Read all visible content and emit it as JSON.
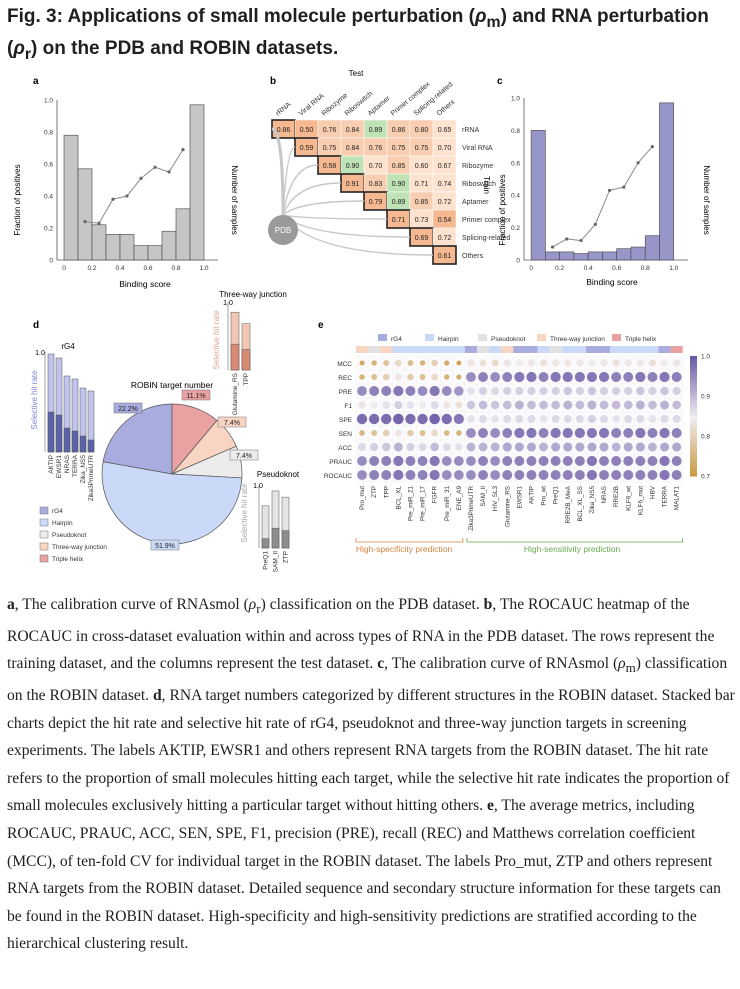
{
  "title": {
    "prefix": "Fig. 3: Applications of small molecule perturbation (",
    "rho_m": "ρ",
    "sub_m": "m",
    "mid": ") and RNA perturbation (",
    "rho_r": "ρ",
    "sub_r": "r",
    "suffix": ") on the PDB and ROBIN datasets."
  },
  "panel_a": {
    "label": "a",
    "ylabel": "Fraction of positives",
    "ylabel_right": "Number of samples",
    "xlabel": "Binding score",
    "xticks": [
      "0",
      "0.2",
      "0.4",
      "0.6",
      "0.8",
      "1.0"
    ],
    "yticks": [
      "0",
      "0.2",
      "0.4",
      "0.6",
      "0.8",
      "1.0"
    ],
    "colors": {
      "bars": "#c6c6c6",
      "line": "#8a8a8a"
    }
  },
  "panel_b": {
    "label": "b",
    "test_label": "Test",
    "train_label": "Train",
    "source_node": "PDB",
    "columns": [
      "rRNA",
      "Viral RNA",
      "Ribozyme",
      "Riboswitch",
      "Aptamer",
      "Primer complex",
      "Splicing-related",
      "Others"
    ],
    "rows": [
      "rRNA",
      "Viral RNA",
      "Ribozyme",
      "Riboswitch",
      "Aptamer",
      "Primer complex",
      "Splicing-related",
      "Others"
    ],
    "cells": [
      [
        "0.86",
        "0.50",
        "0.76",
        "0.84",
        "0.89",
        "0.86",
        "0.80",
        "0.65"
      ],
      [
        "",
        "0.59",
        "0.75",
        "0.84",
        "0.76",
        "0.75",
        "0.75",
        "0.70"
      ],
      [
        "",
        "",
        "0.58",
        "0.90",
        "0.70",
        "0.85",
        "0.60",
        "0.67"
      ],
      [
        "",
        "",
        "",
        "0.91",
        "0.83",
        "0.90",
        "0.71",
        "0.74"
      ],
      [
        "",
        "",
        "",
        "",
        "0.79",
        "0.89",
        "0.85",
        "0.72"
      ],
      [
        "",
        "",
        "",
        "",
        "",
        "0.71",
        "0.73",
        "0.54"
      ],
      [
        "",
        "",
        "",
        "",
        "",
        "",
        "0.69",
        "0.72"
      ],
      [
        "",
        "",
        "",
        "",
        "",
        "",
        "",
        "0.61"
      ]
    ],
    "colors": {
      "low": "#fde2cf",
      "mid": "#f5b890",
      "high": "#bfe3b6",
      "border": "#222222"
    }
  },
  "panel_c": {
    "label": "c",
    "ylabel": "Fraction of positives",
    "ylabel_right": "Number of samples",
    "xlabel": "Binding score",
    "xticks": [
      "0",
      "0.2",
      "0.4",
      "0.6",
      "0.8",
      "1.0"
    ],
    "yticks": [
      "0",
      "0.2",
      "0.4",
      "0.6",
      "0.8",
      "1.0"
    ],
    "colors": {
      "bars": "#9896c8",
      "line": "#8a8a8a"
    }
  },
  "panel_d": {
    "label": "d",
    "bars_rg4": {
      "title": "rG4",
      "ymax": "1.0",
      "ylabel": "Selective hit rate",
      "labels": [
        "AKTIP",
        "EWSR1",
        "NRAS",
        "TERRA",
        "Zika_NS5",
        "Zika3PrimeUTR"
      ]
    },
    "bars_tw": {
      "title": "Three-way junction",
      "ymax": "1.0",
      "ylabel": "Selective hit rate",
      "labels": [
        "Glutamine_RS",
        "TPP"
      ]
    },
    "bars_pk": {
      "title": "Pseudoknot",
      "ymax": "1.0",
      "ylabel": "Selective hit rate",
      "labels": [
        "PreQ1",
        "SAM_II",
        "ZTP"
      ]
    },
    "pie_title": "ROBIN target number",
    "slices": [
      {
        "name": "rG4",
        "pct": "22.2%",
        "value": 22.2,
        "color": "#a9acdf"
      },
      {
        "name": "Triple helix",
        "pct": "11.1%",
        "value": 11.1,
        "color": "#e9a1a1"
      },
      {
        "name": "Three-way junction",
        "pct": "7.4%",
        "value": 7.4,
        "color": "#f8d4c3"
      },
      {
        "name": "Pseudoknot",
        "pct": "7.4%",
        "value": 7.4,
        "color": "#ececec"
      },
      {
        "name": "Hairpin",
        "pct": "51.9%",
        "value": 51.9,
        "color": "#c9d9f7"
      }
    ],
    "legend": [
      "rG4",
      "Hairpin",
      "Pseudoknot",
      "Three-way junction",
      "Triple helix"
    ]
  },
  "panel_e": {
    "label": "e",
    "legend": [
      {
        "name": "rG4",
        "color": "#a9acdf"
      },
      {
        "name": "Hairpin",
        "color": "#c9d9f7"
      },
      {
        "name": "Pseudoknot",
        "color": "#e2e2e2"
      },
      {
        "name": "Three-way junction",
        "color": "#f8d4c3"
      },
      {
        "name": "Triple helix",
        "color": "#e9a1a1"
      }
    ],
    "metrics": [
      "MCC",
      "REC",
      "PRE",
      "F1",
      "SPE",
      "SEN",
      "ACC",
      "PRAUC",
      "ROCAUC"
    ],
    "targets": [
      "Pro_mut",
      "ZTP",
      "TPP",
      "BCL_XL",
      "Pre_miR_21",
      "Pre_miR_17",
      "FGFR",
      "Pre_miR_31",
      "ENE_A9",
      "Zika3PrimeUTR",
      "SAM_II",
      "HIV_SL3",
      "Glutamine_RS",
      "EWSR1",
      "AKTIP",
      "Pro_wt",
      "PreQ1",
      "RRE2B_MeA",
      "BCL_XL_SS",
      "Zika_NS5",
      "NRAS",
      "RRE2B",
      "KLF6_wt",
      "KLF6_mut",
      "HBV",
      "TERRA",
      "MALAT1"
    ],
    "colorbar_ticks": [
      "1.0",
      "0.9",
      "0.8",
      "0.7"
    ],
    "group_left": "High-specificity prediction",
    "group_right": "High-sensitivity prediction",
    "colors": {
      "high": "#6a5aa6",
      "low": "#c9973e",
      "left_group": "#d4843e",
      "right_group": "#6aa84f"
    }
  },
  "caption": {
    "a_label": "a",
    "a_text_1": ", The calibration curve of RNAsmol (",
    "a_rho": "ρ",
    "a_sub": "r",
    "a_text_2": ") classification on the PDB dataset. ",
    "b_label": "b",
    "b_text": ", The ROCAUC heatmap of the ROCAUC in cross-dataset evaluation within and across types of RNA in the PDB dataset. The rows represent the training dataset, and the columns represent the test dataset. ",
    "c_label": "c",
    "c_text_1": ", The calibration curve of RNAsmol (",
    "c_rho": "ρ",
    "c_sub": "m",
    "c_text_2": ") classification on the ROBIN dataset. ",
    "d_label": "d",
    "d_text": ", RNA target numbers categorized by different structures in the ROBIN dataset. Stacked bar charts depict the hit rate and selective hit rate of rG4, pseudoknot and three-way junction targets in screening experiments. The labels AKTIP, EWSR1 and others represent RNA targets from the ROBIN dataset. The hit rate refers to the proportion of small molecules hitting each target, while the selective hit rate indicates the proportion of small molecules exclusively hitting a particular target without hitting others. ",
    "e_label": "e",
    "e_text": ", The average metrics, including ROCAUC, PRAUC, ACC, SEN, SPE, F1, precision (PRE), recall (REC) and Matthews correlation coefficient (MCC), of ten-fold CV for individual target in the ROBIN dataset. The labels Pro_mut, ZTP and others represent RNA targets from the ROBIN dataset. Detailed sequence and secondary structure information for these targets can be found in the ROBIN dataset. High-specificity and high-sensitivity predictions are stratified according to the hierarchical clustering result."
  },
  "chart_data": [
    {
      "type": "bar",
      "panel": "a",
      "xlabel": "Binding score",
      "ylabel": "Fraction of positives",
      "categories": [
        "0.05",
        "0.15",
        "0.25",
        "0.35",
        "0.45",
        "0.55",
        "0.65",
        "0.75",
        "0.85",
        "0.95"
      ],
      "series": [
        {
          "values": [
            0.78,
            0.57,
            0.22,
            0.16,
            0.16,
            0.09,
            0.09,
            0.18,
            0.32,
            0.97
          ]
        }
      ],
      "line": {
        "x": [
          0.15,
          0.25,
          0.35,
          0.45,
          0.55,
          0.65,
          0.75,
          0.85
        ],
        "y": [
          0.24,
          0.23,
          0.38,
          0.4,
          0.51,
          0.58,
          0.55,
          0.69
        ]
      },
      "xlim": [
        -0.05,
        1.1
      ],
      "ylim": [
        0,
        1.0
      ]
    },
    {
      "type": "bar",
      "panel": "c",
      "xlabel": "Binding score",
      "ylabel": "Fraction of positives",
      "categories": [
        "0.05",
        "0.15",
        "0.25",
        "0.35",
        "0.45",
        "0.55",
        "0.65",
        "0.75",
        "0.85",
        "0.95"
      ],
      "series": [
        {
          "values": [
            0.8,
            0.05,
            0.05,
            0.04,
            0.05,
            0.05,
            0.07,
            0.08,
            0.15,
            0.97
          ]
        }
      ],
      "line": {
        "x": [
          0.15,
          0.25,
          0.35,
          0.45,
          0.55,
          0.65,
          0.75,
          0.85
        ],
        "y": [
          0.08,
          0.13,
          0.12,
          0.22,
          0.43,
          0.45,
          0.6,
          0.7
        ]
      },
      "xlim": [
        -0.05,
        1.1
      ],
      "ylim": [
        0,
        1.0
      ]
    },
    {
      "type": "heatmap",
      "panel": "b",
      "values_from": "panel_b.cells"
    },
    {
      "type": "pie",
      "panel": "d",
      "title": "ROBIN target number",
      "labels": [
        "rG4",
        "Triple helix",
        "Three-way junction",
        "Pseudoknot",
        "Hairpin"
      ],
      "values": [
        22.2,
        11.1,
        7.4,
        7.4,
        51.9
      ]
    },
    {
      "type": "bar",
      "panel": "d-rG4",
      "categories": [
        "AKTIP",
        "EWSR1",
        "NRAS",
        "TERRA",
        "Zika_NS5",
        "Zika3PrimeUTR"
      ],
      "series": [
        {
          "values": [
            0.98,
            0.94,
            0.76,
            0.73,
            0.64,
            0.61
          ]
        },
        {
          "values": [
            0.4,
            0.37,
            0.24,
            0.21,
            0.16,
            0.12
          ]
        }
      ],
      "ylim": [
        0,
        1.0
      ]
    },
    {
      "type": "bar",
      "panel": "d-three-way",
      "categories": [
        "Glutamine_RS",
        "TPP"
      ],
      "series": [
        {
          "values": [
            0.85,
            0.68
          ]
        },
        {
          "values": [
            0.38,
            0.3
          ]
        }
      ],
      "ylim": [
        0,
        1.0
      ]
    },
    {
      "type": "bar",
      "panel": "d-pseudoknot",
      "categories": [
        "PreQ1",
        "SAM_II",
        "ZTP"
      ],
      "series": [
        {
          "values": [
            0.68,
            0.92,
            0.82
          ]
        },
        {
          "values": [
            0.15,
            0.32,
            0.28
          ]
        }
      ],
      "ylim": [
        0,
        1.0
      ]
    },
    {
      "type": "heatmap",
      "panel": "e",
      "rows": [
        "MCC",
        "REC",
        "PRE",
        "F1",
        "SPE",
        "SEN",
        "ACC",
        "PRAUC",
        "ROCAUC"
      ],
      "values": [
        [
          0.73,
          0.75,
          0.78,
          0.82,
          0.77,
          0.75,
          0.8,
          0.74,
          0.72,
          0.84,
          0.83,
          0.82,
          0.84,
          0.85,
          0.84,
          0.83,
          0.84,
          0.84,
          0.84,
          0.85,
          0.84,
          0.83,
          0.84,
          0.84,
          0.83,
          0.85,
          0.84
        ],
        [
          0.75,
          0.77,
          0.8,
          0.84,
          0.79,
          0.77,
          0.82,
          0.75,
          0.74,
          0.95,
          0.96,
          0.95,
          0.96,
          0.97,
          0.97,
          0.96,
          0.97,
          0.97,
          0.97,
          0.97,
          0.97,
          0.96,
          0.96,
          0.97,
          0.96,
          0.97,
          0.96
        ],
        [
          0.95,
          0.96,
          0.96,
          0.97,
          0.96,
          0.95,
          0.97,
          0.95,
          0.94,
          0.86,
          0.88,
          0.87,
          0.88,
          0.88,
          0.88,
          0.88,
          0.88,
          0.89,
          0.88,
          0.89,
          0.88,
          0.88,
          0.88,
          0.89,
          0.88,
          0.89,
          0.88
        ],
        [
          0.84,
          0.85,
          0.86,
          0.88,
          0.86,
          0.85,
          0.87,
          0.84,
          0.83,
          0.89,
          0.9,
          0.89,
          0.9,
          0.91,
          0.9,
          0.9,
          0.9,
          0.91,
          0.9,
          0.91,
          0.9,
          0.9,
          0.9,
          0.91,
          0.9,
          0.91,
          0.9
        ],
        [
          0.98,
          0.98,
          0.98,
          0.99,
          0.98,
          0.98,
          0.99,
          0.98,
          0.97,
          0.86,
          0.87,
          0.86,
          0.87,
          0.87,
          0.87,
          0.86,
          0.87,
          0.87,
          0.87,
          0.88,
          0.87,
          0.86,
          0.87,
          0.87,
          0.86,
          0.87,
          0.87
        ],
        [
          0.76,
          0.78,
          0.8,
          0.84,
          0.79,
          0.77,
          0.82,
          0.76,
          0.75,
          0.95,
          0.96,
          0.95,
          0.96,
          0.97,
          0.97,
          0.96,
          0.97,
          0.97,
          0.97,
          0.97,
          0.97,
          0.96,
          0.96,
          0.97,
          0.96,
          0.97,
          0.96
        ],
        [
          0.87,
          0.88,
          0.89,
          0.91,
          0.88,
          0.87,
          0.9,
          0.87,
          0.86,
          0.91,
          0.91,
          0.91,
          0.92,
          0.92,
          0.92,
          0.91,
          0.92,
          0.92,
          0.92,
          0.92,
          0.92,
          0.91,
          0.92,
          0.92,
          0.91,
          0.92,
          0.92
        ],
        [
          0.95,
          0.96,
          0.96,
          0.97,
          0.96,
          0.96,
          0.97,
          0.95,
          0.95,
          0.95,
          0.96,
          0.95,
          0.96,
          0.96,
          0.96,
          0.96,
          0.96,
          0.96,
          0.96,
          0.97,
          0.96,
          0.96,
          0.96,
          0.96,
          0.96,
          0.97,
          0.96
        ],
        [
          0.95,
          0.96,
          0.96,
          0.97,
          0.96,
          0.96,
          0.97,
          0.95,
          0.95,
          0.95,
          0.96,
          0.95,
          0.96,
          0.96,
          0.96,
          0.96,
          0.96,
          0.96,
          0.96,
          0.97,
          0.96,
          0.96,
          0.96,
          0.96,
          0.96,
          0.97,
          0.96
        ]
      ],
      "vmin": 0.7,
      "vmax": 1.0
    }
  ]
}
